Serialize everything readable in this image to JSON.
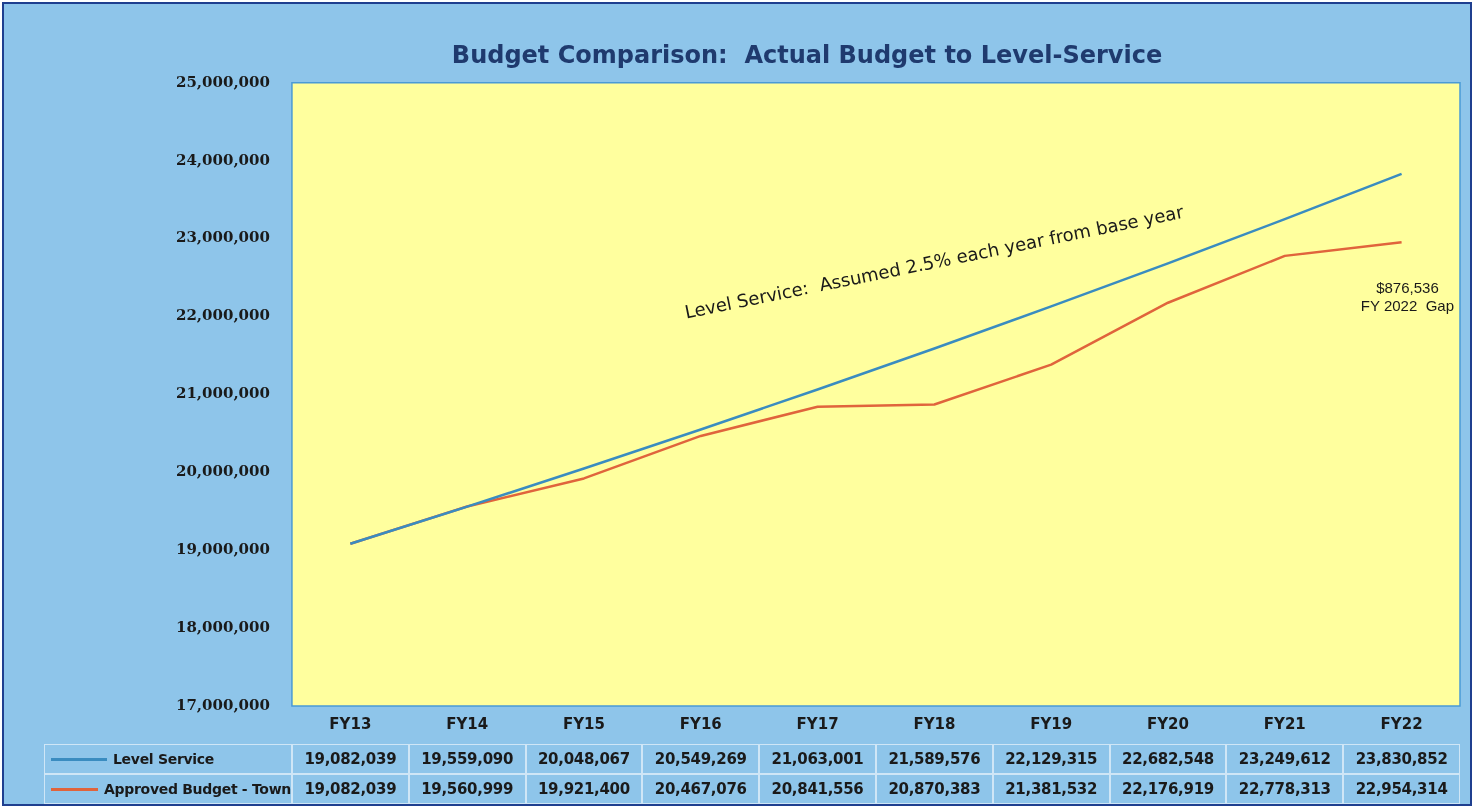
{
  "chart_data": {
    "type": "line",
    "title": "Budget Comparison:  Actual Budget to Level-Service",
    "categories": [
      "FY13",
      "FY14",
      "FY15",
      "FY16",
      "FY17",
      "FY18",
      "FY19",
      "FY20",
      "FY21",
      "FY22"
    ],
    "series": [
      {
        "name": "Level Service",
        "color": "#3a8cc0",
        "values": [
          19082039,
          19559090,
          20048067,
          20549269,
          21063001,
          21589576,
          22129315,
          22682548,
          23249612,
          23830852
        ],
        "value_labels": [
          "19,082,039",
          "19,559,090",
          "20,048,067",
          "20,549,269",
          "21,063,001",
          "21,589,576",
          "22,129,315",
          "22,682,548",
          "23,249,612",
          "23,830,852"
        ]
      },
      {
        "name": "Approved Budget - Town",
        "color": "#e0643c",
        "values": [
          19082039,
          19560999,
          19921400,
          20467076,
          20841556,
          20870383,
          21381532,
          22176919,
          22778313,
          22954314
        ],
        "value_labels": [
          "19,082,039",
          "19,560,999",
          "19,921,400",
          "20,467,076",
          "20,841,556",
          "20,870,383",
          "21,381,532",
          "22,176,919",
          "22,778,313",
          "22,954,314"
        ]
      }
    ],
    "ylim": [
      17000000,
      25000000
    ],
    "yticks": [
      {
        "value": 17000000,
        "label": "17,000,000"
      },
      {
        "value": 18000000,
        "label": "18,000,000"
      },
      {
        "value": 19000000,
        "label": "19,000,000"
      },
      {
        "value": 20000000,
        "label": "20,000,000"
      },
      {
        "value": 21000000,
        "label": "21,000,000"
      },
      {
        "value": 22000000,
        "label": "22,000,000"
      },
      {
        "value": 23000000,
        "label": "23,000,000"
      },
      {
        "value": 24000000,
        "label": "24,000,000"
      },
      {
        "value": 25000000,
        "label": "25,000,000"
      }
    ],
    "annotations": [
      "Level Service:  Assumed 2.5% each year from base year",
      "$876,536\nFY 2022  Gap"
    ],
    "legend": "bottom",
    "grid": false,
    "marker": "none",
    "line_style": "solid"
  }
}
